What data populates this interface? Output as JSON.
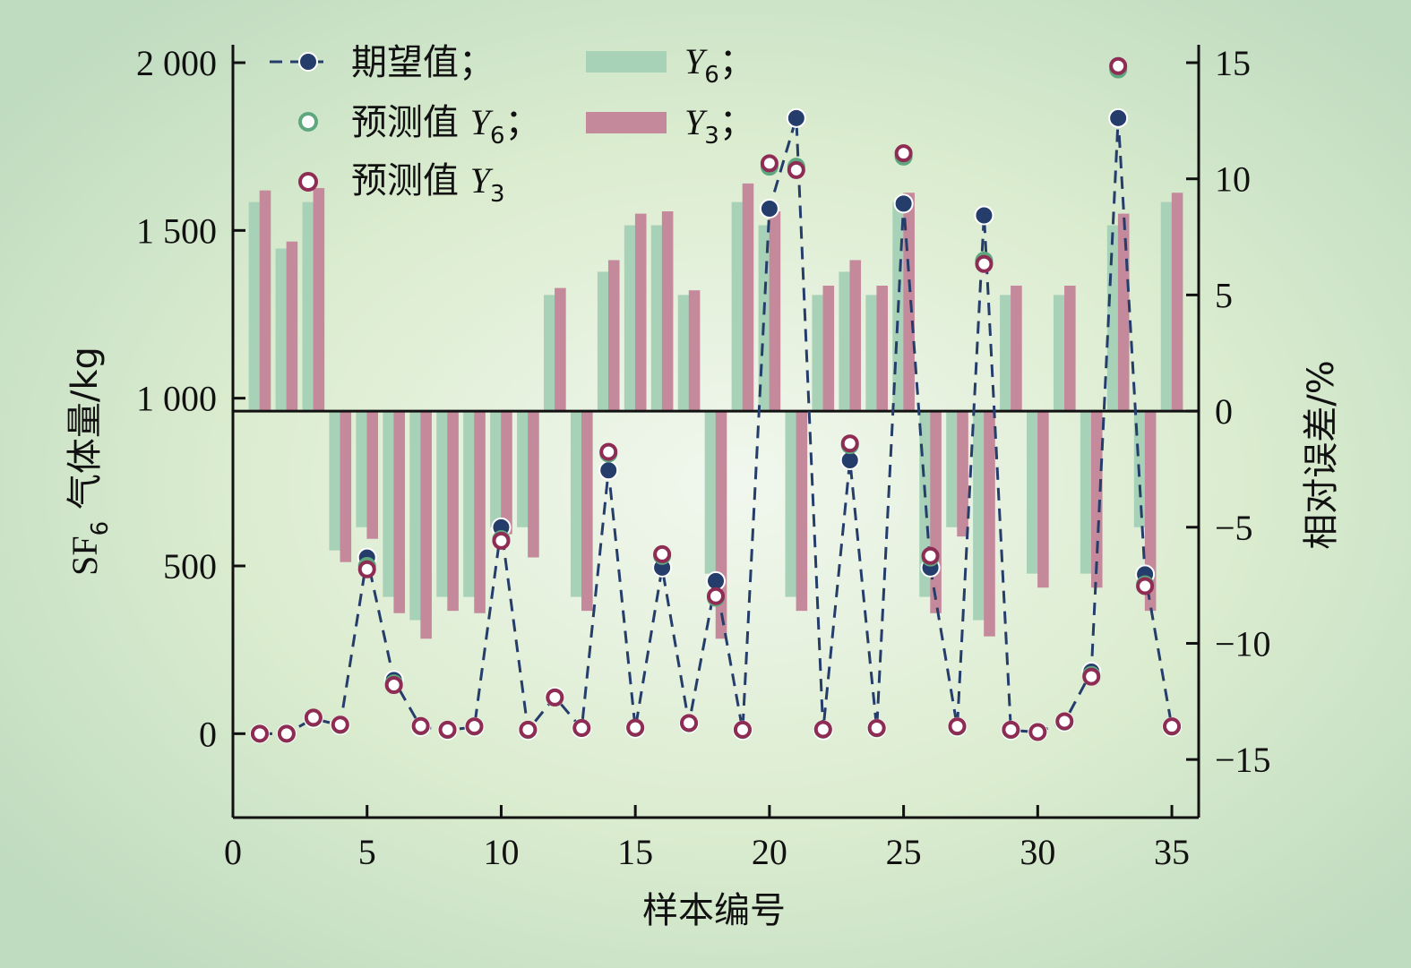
{
  "chart_data": {
    "type": "bar+line",
    "xlabel": "样本编号",
    "ylabel_left": "SF₆ 气体量/kg",
    "ylabel_right": "相对误差/%",
    "xlim": [
      0,
      36
    ],
    "ylim_left": [
      -250,
      2000
    ],
    "ylim_right": [
      -17.5,
      15
    ],
    "xticks": [
      "0",
      "5",
      "10",
      "15",
      "20",
      "25",
      "30",
      "35"
    ],
    "yticks_left": [
      "0",
      "500",
      "1 000",
      "1 500",
      "2 000"
    ],
    "yticks_right": [
      "−15",
      "−10",
      "−5",
      "0",
      "5",
      "10",
      "15"
    ],
    "x": [
      1,
      2,
      3,
      4,
      5,
      6,
      7,
      8,
      9,
      10,
      11,
      12,
      13,
      14,
      15,
      16,
      17,
      18,
      19,
      20,
      21,
      22,
      23,
      24,
      25,
      26,
      27,
      28,
      29,
      30,
      31,
      32,
      33,
      34,
      35
    ],
    "legend": {
      "expected": "期望值；",
      "pred_y6": "预测值",
      "pred_y3": "预测值",
      "y6_bar": "Y",
      "y3_bar": "Y",
      "y6_symbol": "Y",
      "y3_symbol": "Y",
      "sub6": "6",
      "sub3": "3",
      "sep": "；"
    },
    "series": [
      {
        "name": "期望值",
        "axis": "left",
        "kind": "line-marker",
        "values": [
          0,
          0,
          45,
          25,
          525,
          160,
          20,
          10,
          20,
          615,
          10,
          110,
          15,
          785,
          15,
          495,
          30,
          455,
          10,
          1565,
          1835,
          10,
          815,
          15,
          1580,
          495,
          20,
          1545,
          10,
          5,
          35,
          185,
          1835,
          475,
          20
        ]
      },
      {
        "name": "预测值 Y6",
        "axis": "left",
        "kind": "marker",
        "values": [
          0,
          0,
          47,
          26,
          500,
          150,
          22,
          11,
          21,
          580,
          11,
          108,
          17,
          835,
          17,
          530,
          31,
          405,
          11,
          1690,
          1690,
          12,
          860,
          16,
          1720,
          525,
          21,
          1410,
          11,
          5,
          36,
          175,
          1980,
          445,
          21
        ]
      },
      {
        "name": "预测值 Y3",
        "axis": "left",
        "kind": "marker",
        "values": [
          0,
          0,
          48,
          27,
          490,
          145,
          23,
          12,
          22,
          575,
          12,
          108,
          17,
          840,
          18,
          535,
          32,
          410,
          12,
          1700,
          1680,
          13,
          865,
          17,
          1730,
          530,
          22,
          1400,
          12,
          5,
          37,
          170,
          1990,
          440,
          22
        ]
      },
      {
        "name": "Y6",
        "axis": "right",
        "kind": "bar",
        "values": [
          9,
          7,
          9,
          -6,
          -5,
          -8,
          -9,
          -8,
          -8,
          -5,
          -5,
          5,
          -8,
          6,
          8,
          8,
          5,
          -7,
          9,
          8,
          -8,
          5,
          6,
          5,
          9,
          -8,
          -5,
          -9,
          5,
          -7,
          5,
          -7,
          8,
          -5,
          9
        ]
      },
      {
        "name": "Y3",
        "axis": "right",
        "kind": "bar",
        "values": [
          9.5,
          7.3,
          9.6,
          -6.5,
          -5.5,
          -8.7,
          -9.8,
          -8.6,
          -8.7,
          -5.3,
          -6.3,
          5.3,
          -8.6,
          6.5,
          8.5,
          8.6,
          5.2,
          -9.8,
          9.8,
          8.6,
          -8.6,
          5.4,
          6.5,
          5.4,
          9.4,
          -8.7,
          -5.4,
          -9.7,
          5.4,
          -7.6,
          5.4,
          -7.6,
          8.5,
          -8.6,
          9.4
        ]
      }
    ],
    "colors": {
      "expected": "#253d6a",
      "pred_y6": "#5fa77f",
      "pred_y3": "#8e2c54",
      "y6_bar": "#a8d2b8",
      "y3_bar": "#c5899c"
    }
  }
}
